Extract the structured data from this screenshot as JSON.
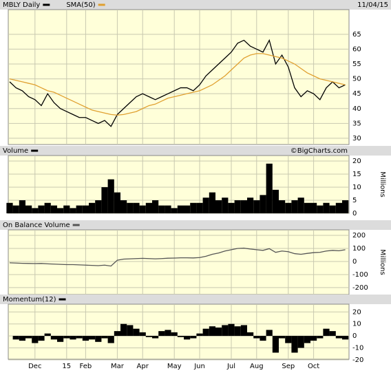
{
  "chart_data": [
    {
      "type": "line",
      "subtitle": "11/04/15",
      "categories": [
        null,
        null,
        null,
        null,
        "Dec",
        null,
        null,
        null,
        null,
        "15",
        null,
        null,
        "Feb",
        null,
        null,
        null,
        null,
        "Mar",
        null,
        null,
        null,
        "Apr",
        null,
        null,
        null,
        null,
        "May",
        null,
        null,
        null,
        "Jun",
        null,
        null,
        null,
        null,
        "Jul",
        null,
        null,
        null,
        "Aug",
        null,
        null,
        null,
        null,
        "Sep",
        null,
        null,
        null,
        "Oct",
        null,
        null,
        null,
        null,
        null
      ],
      "series": [
        {
          "name": "MBLY Daily",
          "color": "#000000",
          "values": [
            49,
            47,
            46,
            44,
            43,
            41,
            45,
            42,
            40,
            39,
            38,
            37,
            37,
            36,
            35,
            36,
            34,
            38,
            40,
            42,
            44,
            45,
            44,
            43,
            44,
            45,
            46,
            47,
            47,
            46,
            48,
            51,
            53,
            55,
            57,
            59,
            62,
            63,
            61,
            60,
            59,
            63,
            55,
            58,
            54,
            47,
            44,
            46,
            45,
            43,
            47,
            49,
            47,
            48
          ]
        },
        {
          "name": "SMA(50)",
          "color": "#e0a030",
          "values": [
            50,
            49.5,
            49,
            48.5,
            48,
            47,
            46,
            45.5,
            44.5,
            43.5,
            42.5,
            41.5,
            40.5,
            39.5,
            39,
            38.5,
            38,
            37.8,
            38,
            38.5,
            39,
            40,
            41,
            41.5,
            42.5,
            43.5,
            44,
            44.5,
            45,
            45.5,
            46,
            47,
            48,
            49.5,
            51,
            53,
            55,
            57,
            58,
            58.5,
            58.5,
            58,
            57.5,
            57,
            56,
            55,
            53.5,
            52,
            51,
            50,
            49.5,
            49,
            48.5,
            48
          ]
        }
      ],
      "ylim": [
        27.9,
        73.3
      ],
      "yticks": [
        30,
        35,
        40,
        45,
        50,
        55,
        60,
        65
      ],
      "grid": true
    },
    {
      "type": "bar",
      "title": "Volume",
      "annotation": "©BigCharts.com",
      "y_label": "Millions",
      "color": "#000000",
      "values": [
        4,
        3,
        5,
        3,
        2,
        3,
        4,
        3,
        2,
        3,
        2,
        3,
        3,
        4,
        5,
        10,
        13,
        8,
        5,
        4,
        4,
        3,
        4,
        5,
        3,
        3,
        2,
        3,
        3,
        4,
        4,
        6,
        8,
        5,
        6,
        4,
        5,
        5,
        6,
        5,
        7,
        19,
        9,
        5,
        4,
        5,
        6,
        4,
        4,
        3,
        4,
        3,
        4,
        5
      ],
      "ylim": [
        0,
        22.1
      ],
      "yticks": [
        0,
        5,
        10,
        15,
        20
      ],
      "grid": true
    },
    {
      "type": "line",
      "title": "On Balance Volume",
      "y_label": "Millions",
      "color": "#555555",
      "values": [
        -10,
        -12,
        -14,
        -15,
        -16,
        -15,
        -18,
        -20,
        -22,
        -24,
        -24,
        -26,
        -28,
        -30,
        -32,
        -28,
        -35,
        10,
        18,
        20,
        22,
        24,
        22,
        20,
        22,
        25,
        26,
        28,
        28,
        27,
        30,
        40,
        55,
        65,
        80,
        90,
        100,
        102,
        95,
        90,
        85,
        98,
        70,
        80,
        75,
        60,
        55,
        62,
        68,
        70,
        80,
        85,
        82,
        90
      ],
      "ylim": [
        -253,
        242
      ],
      "yticks": [
        -200,
        -100,
        0,
        100,
        200
      ],
      "grid": true
    },
    {
      "type": "bar",
      "title": "Momentum(12)",
      "color": "#000000",
      "values": [
        0,
        -3,
        -4,
        -2,
        -6,
        -4,
        2,
        -3,
        -5,
        -2,
        -3,
        -2,
        -4,
        -3,
        -5,
        -2,
        -6,
        4,
        10,
        9,
        6,
        3,
        -1,
        -2,
        4,
        5,
        3,
        -1,
        -3,
        -2,
        2,
        6,
        8,
        7,
        9,
        10,
        8,
        9,
        3,
        -2,
        -4,
        5,
        -14,
        -2,
        -6,
        -14,
        -10,
        -6,
        -4,
        -2,
        6,
        4,
        -2,
        -3
      ],
      "ylim": [
        -19.5,
        26.5
      ],
      "yticks": [
        -20,
        -10,
        0,
        10,
        20
      ],
      "grid": true
    }
  ]
}
